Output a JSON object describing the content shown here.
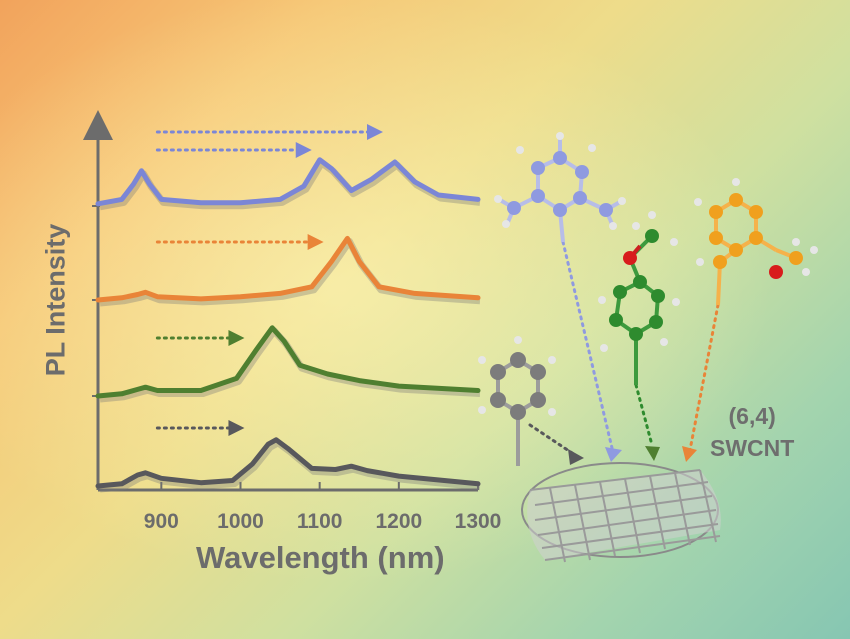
{
  "chart_data": {
    "type": "line",
    "xlabel": "Wavelength (nm)",
    "ylabel": "PL Intensity",
    "xlim": [
      820,
      1300
    ],
    "xticks": [
      900,
      1000,
      1100,
      1200,
      1300
    ],
    "grid": false,
    "series": [
      {
        "color": "#7b86d6",
        "offset": 3,
        "points": [
          [
            820,
            0.02
          ],
          [
            850,
            0.06
          ],
          [
            865,
            0.2
          ],
          [
            875,
            0.32
          ],
          [
            885,
            0.2
          ],
          [
            900,
            0.06
          ],
          [
            950,
            0.03
          ],
          [
            1000,
            0.03
          ],
          [
            1050,
            0.06
          ],
          [
            1080,
            0.18
          ],
          [
            1100,
            0.42
          ],
          [
            1115,
            0.34
          ],
          [
            1140,
            0.14
          ],
          [
            1165,
            0.24
          ],
          [
            1195,
            0.4
          ],
          [
            1220,
            0.22
          ],
          [
            1250,
            0.1
          ],
          [
            1300,
            0.06
          ]
        ],
        "arrows": [
          [
            895,
            1180
          ],
          [
            895,
            1090
          ]
        ]
      },
      {
        "color": "#e98438",
        "offset": 2,
        "points": [
          [
            820,
            0.0
          ],
          [
            850,
            0.02
          ],
          [
            870,
            0.05
          ],
          [
            880,
            0.07
          ],
          [
            895,
            0.03
          ],
          [
            950,
            0.01
          ],
          [
            1000,
            0.03
          ],
          [
            1050,
            0.06
          ],
          [
            1090,
            0.12
          ],
          [
            1115,
            0.35
          ],
          [
            1135,
            0.56
          ],
          [
            1150,
            0.35
          ],
          [
            1175,
            0.12
          ],
          [
            1220,
            0.06
          ],
          [
            1300,
            0.02
          ]
        ],
        "arrows": [
          [
            895,
            1105
          ]
        ]
      },
      {
        "color": "#4f7f30",
        "offset": 1,
        "points": [
          [
            820,
            0.0
          ],
          [
            850,
            0.02
          ],
          [
            870,
            0.06
          ],
          [
            880,
            0.08
          ],
          [
            895,
            0.05
          ],
          [
            950,
            0.05
          ],
          [
            995,
            0.16
          ],
          [
            1020,
            0.42
          ],
          [
            1040,
            0.62
          ],
          [
            1055,
            0.5
          ],
          [
            1075,
            0.28
          ],
          [
            1110,
            0.2
          ],
          [
            1150,
            0.14
          ],
          [
            1200,
            0.09
          ],
          [
            1300,
            0.05
          ]
        ],
        "arrows": [
          [
            895,
            1005
          ]
        ]
      },
      {
        "color": "#58585c",
        "offset": 0,
        "points": [
          [
            820,
            0.0
          ],
          [
            850,
            0.02
          ],
          [
            870,
            0.1
          ],
          [
            880,
            0.12
          ],
          [
            900,
            0.07
          ],
          [
            950,
            0.03
          ],
          [
            990,
            0.05
          ],
          [
            1015,
            0.2
          ],
          [
            1035,
            0.38
          ],
          [
            1045,
            0.42
          ],
          [
            1060,
            0.34
          ],
          [
            1090,
            0.16
          ],
          [
            1120,
            0.15
          ],
          [
            1140,
            0.18
          ],
          [
            1160,
            0.14
          ],
          [
            1200,
            0.09
          ],
          [
            1300,
            0.02
          ]
        ],
        "arrows": [
          [
            895,
            1005
          ]
        ]
      }
    ]
  },
  "annotation": {
    "line1": "(6,4)",
    "line2": "SWCNT"
  },
  "colors": {
    "axis": "#6c6c6c",
    "nanotube": "#9a9a9a",
    "carbon_green": "#2e8b2e",
    "carbon_orange": "#f0a01e",
    "carbon_blue": "#8f9ae0",
    "carbon_gray": "#7c7c7c",
    "oxygen": "#d81c1c",
    "hydrogen": "#dedede"
  }
}
